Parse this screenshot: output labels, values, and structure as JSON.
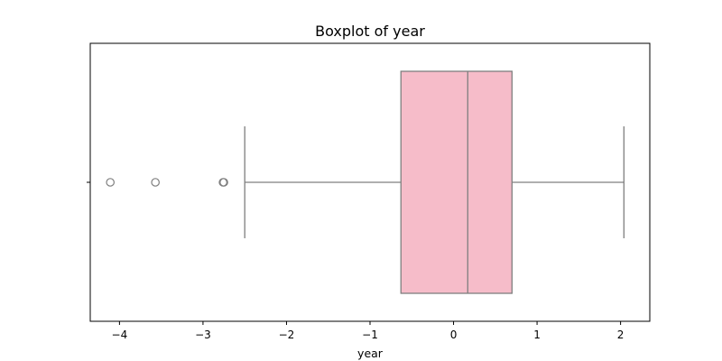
{
  "chart_data": {
    "type": "boxplot",
    "title": "Boxplot of year",
    "xlabel": "year",
    "ylabel": "",
    "orientation": "horizontal",
    "xlim": [
      -4.35,
      2.35
    ],
    "xticks": [
      -4,
      -3,
      -2,
      -1,
      0,
      1,
      2
    ],
    "xtick_labels": [
      "−4",
      "−3",
      "−2",
      "−1",
      "0",
      "1",
      "2"
    ],
    "grid": false,
    "box": {
      "q1": -0.63,
      "median": 0.17,
      "q3": 0.7,
      "whisker_low": -2.5,
      "whisker_high": 2.04
    },
    "outliers": [
      -4.11,
      -3.57,
      -2.76,
      -2.75
    ],
    "colors": {
      "box_fill": "#f6bcc9",
      "line": "#7f7f7f",
      "axis": "#000000"
    }
  }
}
